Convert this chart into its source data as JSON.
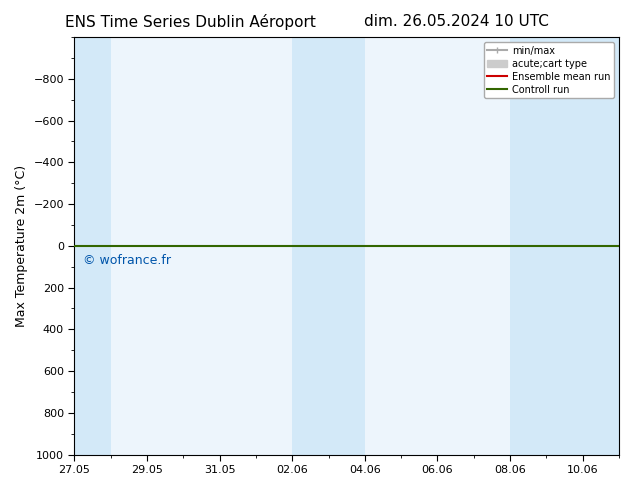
{
  "title_left": "ENS Time Series Dublin Aéroport",
  "title_right": "dim. 26.05.2024 10 UTC",
  "ylabel": "Max Temperature 2m (°C)",
  "ylim_top": -1000,
  "ylim_bottom": 1000,
  "yticks": [
    -800,
    -600,
    -400,
    -200,
    0,
    200,
    400,
    600,
    800,
    1000
  ],
  "xtick_labels": [
    "27.05",
    "29.05",
    "31.05",
    "02.06",
    "04.06",
    "06.06",
    "08.06",
    "10.06"
  ],
  "xtick_days": [
    0,
    2,
    4,
    6,
    8,
    10,
    12,
    14
  ],
  "total_days": 15,
  "watermark": "© wofrance.fr",
  "bg_color": "#ffffff",
  "plot_bg_color": "#edf5fc",
  "band_color": "#d3e9f8",
  "band_ranges": [
    [
      0,
      1
    ],
    [
      6,
      7
    ],
    [
      7,
      8
    ],
    [
      12,
      13
    ],
    [
      13,
      15
    ]
  ],
  "green_line_color": "#336600",
  "red_line_color": "#cc0000",
  "control_run_y": 0,
  "ensemble_mean_y": 0,
  "legend_labels": [
    "min/max",
    "acute;cart type",
    "Ensemble mean run",
    "Controll run"
  ],
  "legend_gray1": "#aaaaaa",
  "legend_gray2": "#cccccc",
  "watermark_color": "#0055aa",
  "title_fontsize": 11,
  "ylabel_fontsize": 9,
  "tick_fontsize": 8
}
